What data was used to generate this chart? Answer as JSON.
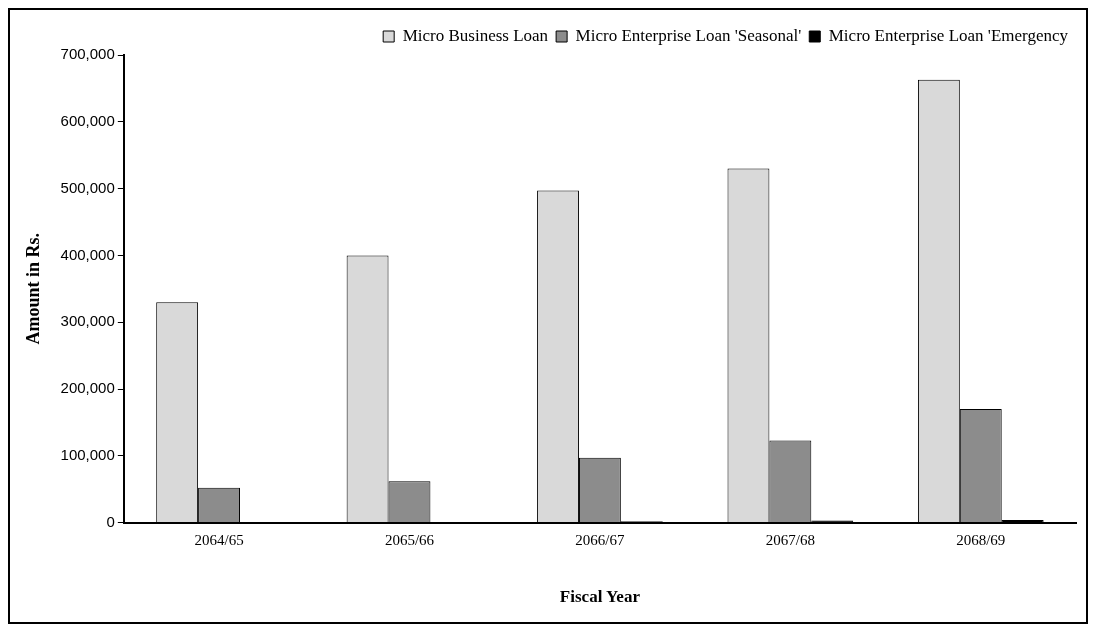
{
  "chart_data": {
    "type": "bar",
    "xlabel": "Fiscal Year",
    "ylabel": "Amount in Rs.",
    "categories": [
      "2064/65",
      "2065/66",
      "2066/67",
      "2067/68",
      "2068/69"
    ],
    "series": [
      {
        "name": "Micro Business Loan",
        "color": "#d9d9d9",
        "values": [
          330000,
          400000,
          497000,
          530000,
          663000
        ]
      },
      {
        "name": "Micro Enterprise Loan 'Seasonal'",
        "color": "#8c8c8c",
        "values": [
          52000,
          62000,
          97000,
          123000,
          170000
        ]
      },
      {
        "name": "Micro Enterprise Loan 'Emergency",
        "color": "#000000",
        "values": [
          0,
          0,
          2000,
          3000,
          4000
        ]
      }
    ],
    "ylim": [
      0,
      700000
    ],
    "yticks": [
      0,
      {
        "value": 100000,
        "label": "100,000"
      },
      {
        "value": 200000,
        "label": "200,000"
      },
      {
        "value": 300000,
        "label": "300,000"
      },
      {
        "value": 400000,
        "label": "400,000"
      },
      {
        "value": 500000,
        "label": "500,000"
      },
      {
        "value": 600000,
        "label": "600,000"
      },
      {
        "value": 700000,
        "label": "700,000"
      }
    ],
    "grid": false,
    "legend": "top right"
  }
}
